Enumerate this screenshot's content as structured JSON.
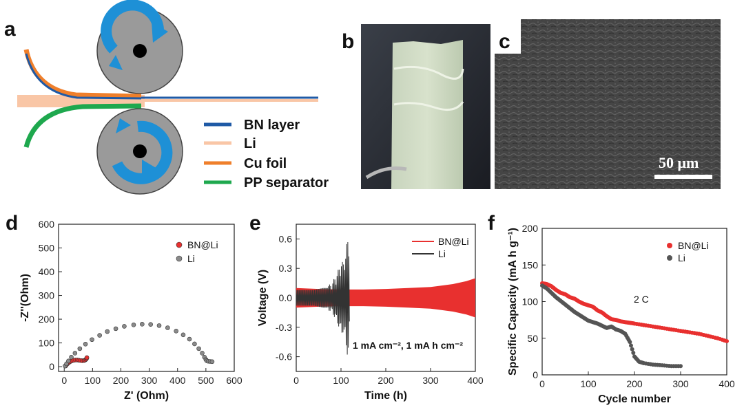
{
  "panels": {
    "a": "a",
    "b": "b",
    "c": "c",
    "d": "d",
    "e": "e",
    "f": "f"
  },
  "schematic": {
    "legend": [
      {
        "label": "BN layer",
        "color": "#1f5aa6"
      },
      {
        "label": "Li",
        "color": "#f9c6a6"
      },
      {
        "label": "Cu foil",
        "color": "#ef7f2b"
      },
      {
        "label": "PP separator",
        "color": "#1ea84e"
      }
    ]
  },
  "sem": {
    "scalebar": "50 μm"
  },
  "colors": {
    "bnli": "#e8302f",
    "li": "#555555"
  },
  "chart_data": [
    {
      "id": "d",
      "type": "scatter",
      "xlabel": "Z' (Ohm)",
      "ylabel": "-Z''(Ohm)",
      "xlim": [
        -20,
        600
      ],
      "ylim": [
        -20,
        600
      ],
      "xticks": [
        0,
        100,
        200,
        300,
        400,
        500,
        600
      ],
      "yticks": [
        0,
        100,
        200,
        300,
        400,
        500,
        600
      ],
      "legend": [
        "BN@Li",
        "Li"
      ],
      "series": [
        {
          "name": "BN@Li",
          "x": [
            5,
            8,
            12,
            17,
            22,
            28,
            34,
            40,
            46,
            52,
            58,
            64,
            70,
            74,
            77,
            79,
            80
          ],
          "y": [
            3,
            8,
            13,
            18,
            22,
            25,
            27,
            28,
            28,
            27,
            26,
            25,
            26,
            28,
            31,
            35,
            38
          ]
        },
        {
          "name": "Li",
          "x": [
            3,
            8,
            15,
            25,
            38,
            55,
            75,
            98,
            125,
            152,
            182,
            212,
            245,
            275,
            305,
            335,
            365,
            395,
            420,
            442,
            460,
            475,
            487,
            495,
            500,
            503,
            508,
            515,
            522
          ],
          "y": [
            3,
            12,
            24,
            40,
            57,
            76,
            95,
            114,
            132,
            148,
            160,
            170,
            176,
            179,
            178,
            173,
            164,
            150,
            134,
            116,
            96,
            76,
            57,
            40,
            30,
            25,
            23,
            22,
            21
          ]
        }
      ]
    },
    {
      "id": "e",
      "type": "line",
      "xlabel": "Time (h)",
      "ylabel": "Voltage (V)",
      "xlim": [
        0,
        400
      ],
      "ylim": [
        -0.75,
        0.75
      ],
      "xticks": [
        0,
        100,
        200,
        300,
        400
      ],
      "yticks": [
        0.6,
        0.3,
        0.0,
        -0.3,
        -0.6
      ],
      "annotation": "1 mA cm⁻², 1 mA h cm⁻²",
      "legend": [
        "BN@Li",
        "Li"
      ],
      "series": [
        {
          "name": "BN@Li",
          "x": [
            0,
            50,
            100,
            150,
            200,
            250,
            300,
            350,
            380,
            400
          ],
          "y": [
            0.1,
            0.09,
            0.085,
            0.085,
            0.09,
            0.1,
            0.11,
            0.14,
            0.17,
            0.2
          ]
        },
        {
          "name": "Li",
          "x": [
            0,
            40,
            60,
            80,
            90,
            95,
            100,
            105,
            110,
            115,
            118,
            120
          ],
          "y": [
            0.08,
            0.08,
            0.1,
            0.15,
            0.25,
            0.3,
            0.4,
            0.35,
            0.5,
            0.6,
            0.62,
            0.1
          ]
        }
      ]
    },
    {
      "id": "f",
      "type": "scatter",
      "xlabel": "Cycle number",
      "ylabel": "Specific Capacity (mA h g⁻¹)",
      "xlim": [
        0,
        400
      ],
      "ylim": [
        0,
        200
      ],
      "xticks": [
        0,
        100,
        200,
        300,
        400
      ],
      "yticks": [
        0,
        50,
        100,
        150,
        200
      ],
      "annotation": "2 C",
      "legend": [
        "BN@Li",
        "Li"
      ],
      "series": [
        {
          "name": "BN@Li",
          "x": [
            0,
            10,
            20,
            30,
            40,
            50,
            60,
            70,
            80,
            90,
            100,
            110,
            120,
            130,
            140,
            150,
            160,
            170,
            180,
            190,
            200,
            220,
            240,
            260,
            280,
            300,
            320,
            340,
            360,
            380,
            400
          ],
          "y": [
            125,
            124,
            121,
            116,
            112,
            110,
            106,
            104,
            100,
            97,
            95,
            93,
            88,
            85,
            80,
            76,
            75,
            73,
            72,
            71,
            70,
            68,
            66,
            64,
            62,
            60,
            58,
            56,
            53,
            50,
            46
          ]
        },
        {
          "name": "Li",
          "x": [
            0,
            10,
            20,
            30,
            40,
            50,
            60,
            70,
            80,
            90,
            100,
            110,
            120,
            130,
            140,
            150,
            160,
            170,
            180,
            190,
            200,
            210,
            220,
            240,
            260,
            280,
            300
          ],
          "y": [
            122,
            118,
            112,
            106,
            101,
            96,
            91,
            86,
            82,
            78,
            74,
            72,
            70,
            67,
            64,
            66,
            62,
            60,
            56,
            45,
            25,
            18,
            16,
            14,
            13,
            12,
            12
          ]
        }
      ]
    }
  ]
}
